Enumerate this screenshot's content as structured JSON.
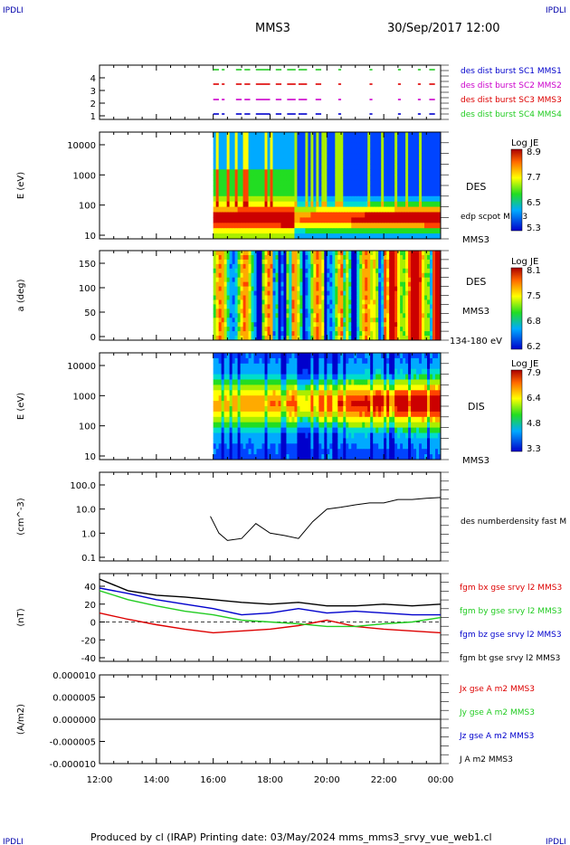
{
  "header": {
    "corner_left": "IPDLI",
    "corner_right": "IPDLI",
    "spacecraft": "MMS3",
    "datetime": "30/Sep/2017 12:00"
  },
  "footer": {
    "text": "Produced by cl (IRAP)   Printing date: 03/May/2024   mms_mms3_srvy_vue_web1.cl",
    "corner_left": "IPDLI",
    "corner_right": "IPDLI"
  },
  "colors": {
    "green": "#22cc22",
    "magenta": "#cc00cc",
    "red": "#dd0000",
    "blue": "#0000cc",
    "black": "#000000"
  },
  "chart_data": [
    {
      "type": "scatter",
      "name": "burst",
      "y_ticks": [
        "1",
        "2",
        "3",
        "4"
      ],
      "legend": [
        {
          "label": "des dist burst SC1 MMS1",
          "color": "#0000cc"
        },
        {
          "label": "des dist burst SC2 MMS2",
          "color": "#cc00cc"
        },
        {
          "label": "des dist burst SC3 MMS3",
          "color": "#dd0000"
        },
        {
          "label": "des dist burst SC4 MMS4",
          "color": "#22cc22"
        }
      ],
      "segments_hours": [
        [
          16.0,
          16.2
        ],
        [
          16.3,
          16.4
        ],
        [
          16.8,
          17.0
        ],
        [
          17.1,
          17.3
        ],
        [
          17.5,
          18.0
        ],
        [
          18.2,
          18.4
        ],
        [
          18.6,
          18.9
        ],
        [
          19.0,
          19.3
        ],
        [
          19.6,
          19.8
        ],
        [
          20.4,
          20.5
        ],
        [
          21.5,
          21.6
        ],
        [
          22.5,
          22.6
        ],
        [
          23.2,
          23.3
        ],
        [
          23.6,
          23.8
        ]
      ]
    },
    {
      "type": "heatmap",
      "name": "DES energy spectrogram",
      "ylabel": "E (eV)",
      "y_ticks": [
        "10000",
        "1000",
        "100",
        "10"
      ],
      "label": "DES",
      "sub_label": "edp scpot MMS3",
      "bottom_label": "MMS3",
      "colorbar": {
        "title": "Log JE",
        "ticks": [
          "8.9",
          "7.7",
          "6.5",
          "5.3"
        ]
      }
    },
    {
      "type": "heatmap",
      "name": "DES pitch angle",
      "ylabel": "a (deg)",
      "y_ticks": [
        "150",
        "100",
        "50",
        "0"
      ],
      "label": "DES",
      "sub_label": "MMS3",
      "bottom_label": "134-180 eV",
      "colorbar": {
        "title": "Log JE",
        "ticks": [
          "8.1",
          "7.5",
          "6.8",
          "6.2"
        ]
      }
    },
    {
      "type": "heatmap",
      "name": "DIS energy spectrogram",
      "ylabel": "E (eV)",
      "y_ticks": [
        "10000",
        "1000",
        "100",
        "10"
      ],
      "label": "DIS",
      "bottom_label": "MMS3",
      "colorbar": {
        "title": "Log JE",
        "ticks": [
          "7.9",
          "6.4",
          "4.8",
          "3.3"
        ]
      }
    },
    {
      "type": "line",
      "name": "density",
      "ylabel": "(cm^-3)",
      "y_ticks": [
        "100.0",
        "10.0",
        "1.0",
        "0.1"
      ],
      "legend": [
        {
          "label": "des numberdensity fast M",
          "color": "#000000"
        }
      ],
      "x_hours": [
        15.9,
        16.2,
        16.5,
        17.0,
        17.5,
        18.0,
        18.5,
        19.0,
        19.5,
        20.0,
        20.5,
        21.0,
        21.5,
        22.0,
        22.5,
        23.0,
        23.5,
        24.0
      ],
      "values": [
        5.0,
        1.0,
        0.5,
        0.6,
        2.5,
        1.0,
        0.8,
        0.6,
        3.0,
        10.0,
        12.0,
        15.0,
        18.0,
        18.0,
        25.0,
        25.0,
        28.0,
        30.0
      ]
    },
    {
      "type": "line",
      "name": "magnetic field",
      "ylabel": "(nT)",
      "y_ticks": [
        "40",
        "20",
        "0",
        "-20",
        "-40"
      ],
      "ylim": [
        -47,
        47
      ],
      "legend": [
        {
          "label": "fgm bx gse srvy l2 MMS3",
          "color": "#dd0000"
        },
        {
          "label": "fgm by gse srvy l2 MMS3",
          "color": "#22cc22"
        },
        {
          "label": "fgm bz gse srvy l2 MMS3",
          "color": "#0000cc"
        },
        {
          "label": "fgm bt gse srvy l2 MMS3",
          "color": "#000000"
        }
      ],
      "x_hours": [
        12,
        13,
        14,
        15,
        16,
        17,
        18,
        19,
        20,
        21,
        22,
        23,
        24
      ],
      "series": [
        {
          "values": [
            10,
            3,
            -3,
            -8,
            -12,
            -10,
            -8,
            -4,
            2,
            -5,
            -8,
            -10,
            -12
          ]
        },
        {
          "values": [
            35,
            25,
            18,
            12,
            8,
            2,
            0,
            -2,
            -5,
            -5,
            -2,
            0,
            5
          ]
        },
        {
          "values": [
            38,
            32,
            25,
            20,
            15,
            8,
            10,
            15,
            10,
            12,
            10,
            8,
            8
          ]
        },
        {
          "values": [
            48,
            35,
            30,
            28,
            25,
            22,
            20,
            22,
            18,
            18,
            20,
            18,
            20
          ]
        }
      ]
    },
    {
      "type": "line",
      "name": "current density",
      "ylabel": "(A/m2)",
      "y_ticks": [
        "0.000010",
        "0.000005",
        "0.000000",
        "-0.000005",
        "-0.000010"
      ],
      "ylim": [
        -1e-05,
        1e-05
      ],
      "legend": [
        {
          "label": "Jx gse A m2 MMS3",
          "color": "#dd0000"
        },
        {
          "label": "Jy gse A m2 MMS3",
          "color": "#22cc22"
        },
        {
          "label": "Jz gse A m2 MMS3",
          "color": "#0000cc"
        },
        {
          "label": "J A m2 MMS3",
          "color": "#000000"
        }
      ],
      "x_hours": [
        12,
        24
      ],
      "values": [
        0,
        0
      ]
    }
  ],
  "x_axis": {
    "ticks": [
      "12:00",
      "14:00",
      "16:00",
      "18:00",
      "20:00",
      "22:00",
      "00:00"
    ]
  }
}
